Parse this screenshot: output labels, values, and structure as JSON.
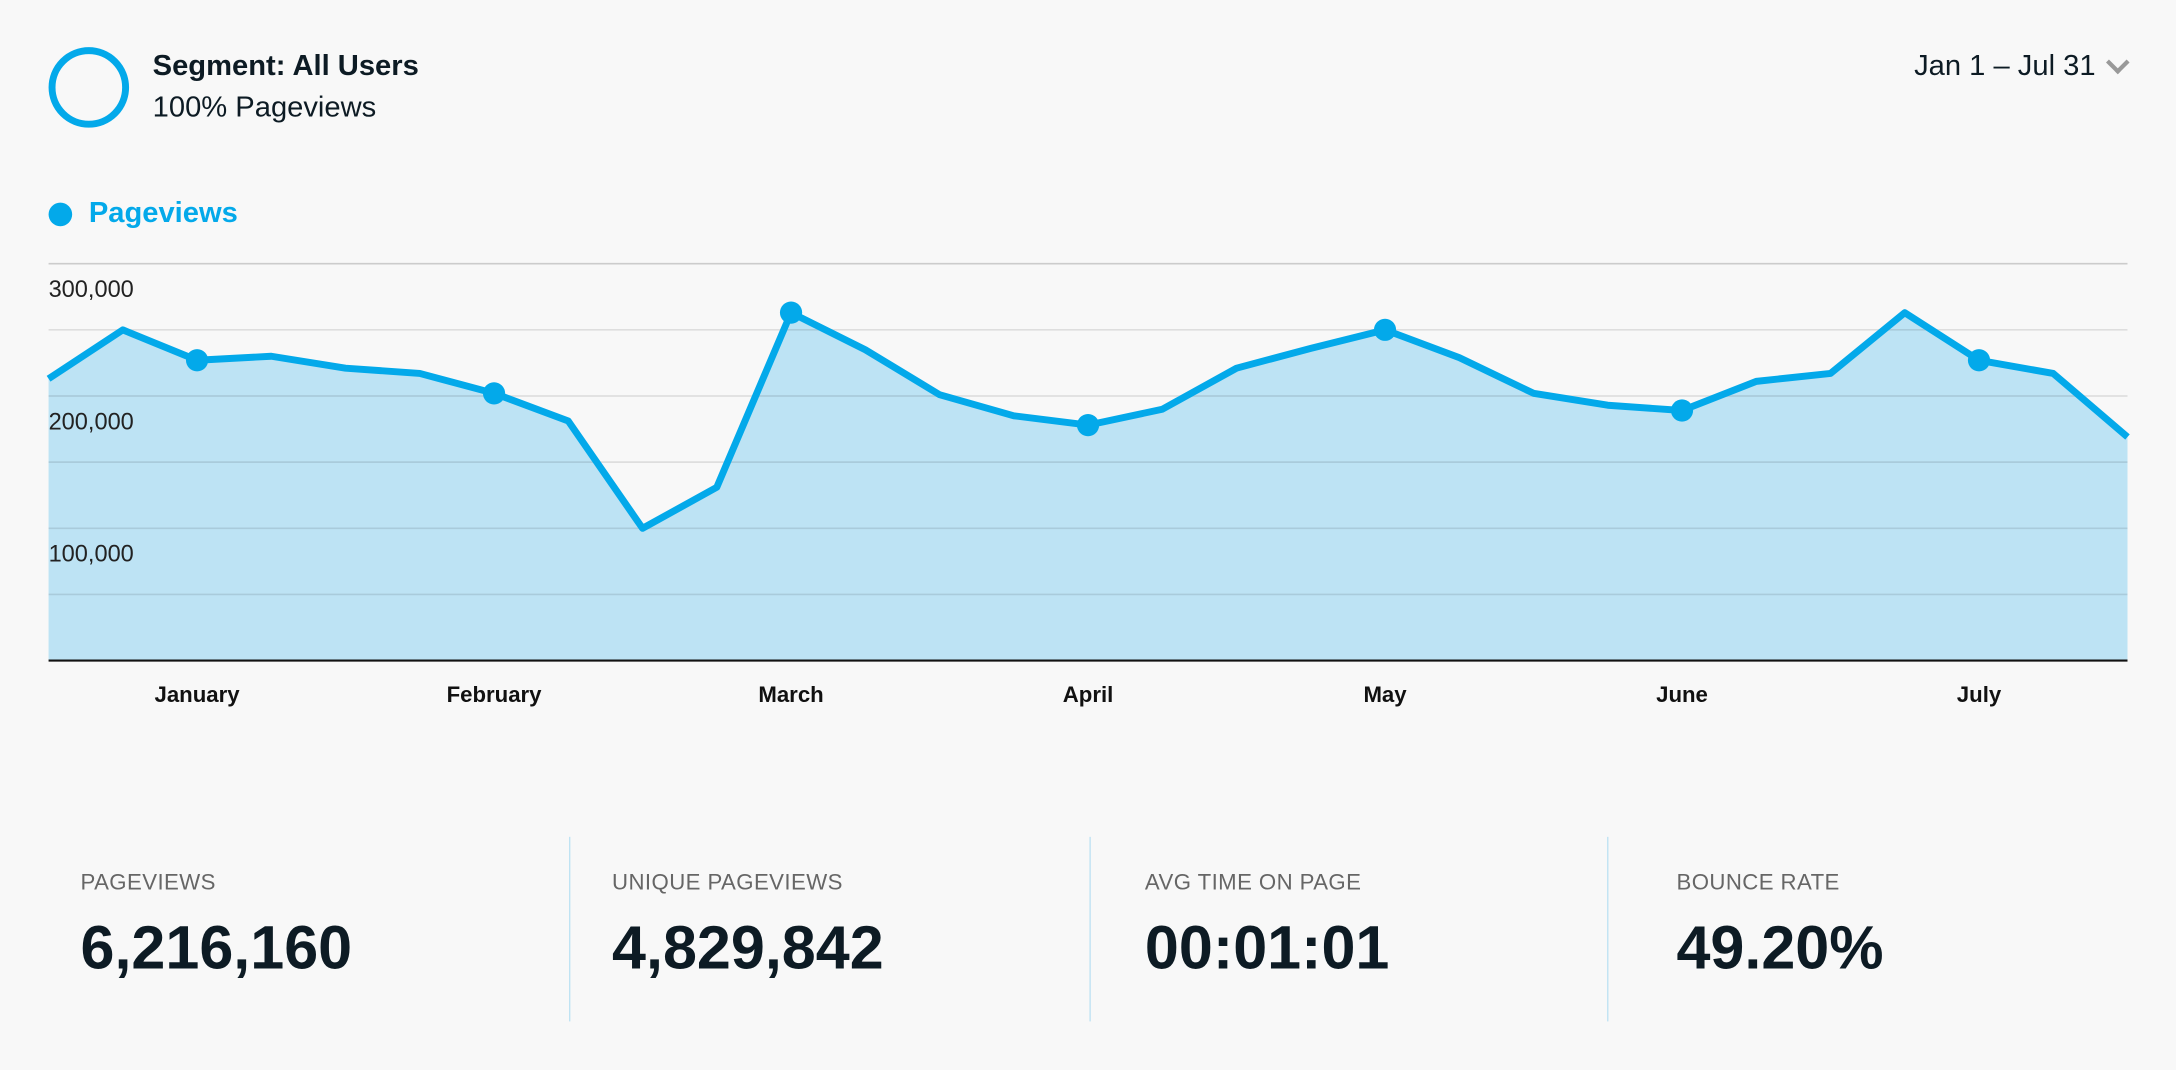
{
  "header": {
    "segment_title": "Segment: All Users",
    "segment_subtitle": "100% Pageviews",
    "date_range": "Jan 1 – Jul 31"
  },
  "colors": {
    "accent": "#03a9ea",
    "fill": "#bde3f4"
  },
  "chart_data": {
    "type": "area",
    "title": "",
    "legend": [
      {
        "name": "Pageviews",
        "position": "top-left"
      }
    ],
    "ylim": [
      0,
      300000
    ],
    "yticks": [
      {
        "value": 300000,
        "label": "300,000"
      },
      {
        "value": 200000,
        "label": "200,000"
      },
      {
        "value": 100000,
        "label": "100,000"
      }
    ],
    "gridlines": [
      0,
      50000,
      100000,
      150000,
      200000,
      250000,
      300000
    ],
    "xticks": [
      {
        "index": 2,
        "label": "January"
      },
      {
        "index": 6,
        "label": "February"
      },
      {
        "index": 10,
        "label": "March"
      },
      {
        "index": 14,
        "label": "April"
      },
      {
        "index": 18,
        "label": "May"
      },
      {
        "index": 22,
        "label": "June"
      },
      {
        "index": 26,
        "label": "July"
      }
    ],
    "series": [
      {
        "name": "Pageviews",
        "values": [
          213000,
          250000,
          227000,
          230000,
          221000,
          217000,
          202000,
          181000,
          100000,
          131000,
          263000,
          235000,
          201000,
          185000,
          178000,
          190000,
          221000,
          236000,
          250000,
          229000,
          202000,
          193000,
          189000,
          211000,
          217000,
          263000,
          227000,
          217000,
          169000
        ]
      }
    ]
  },
  "stats": [
    {
      "label": "PAGEVIEWS",
      "value": "6,216,160"
    },
    {
      "label": "UNIQUE PAGEVIEWS",
      "value": "4,829,842"
    },
    {
      "label": "AVG TIME ON PAGE",
      "value": "00:01:01"
    },
    {
      "label": "BOUNCE RATE",
      "value": "49.20%"
    }
  ]
}
